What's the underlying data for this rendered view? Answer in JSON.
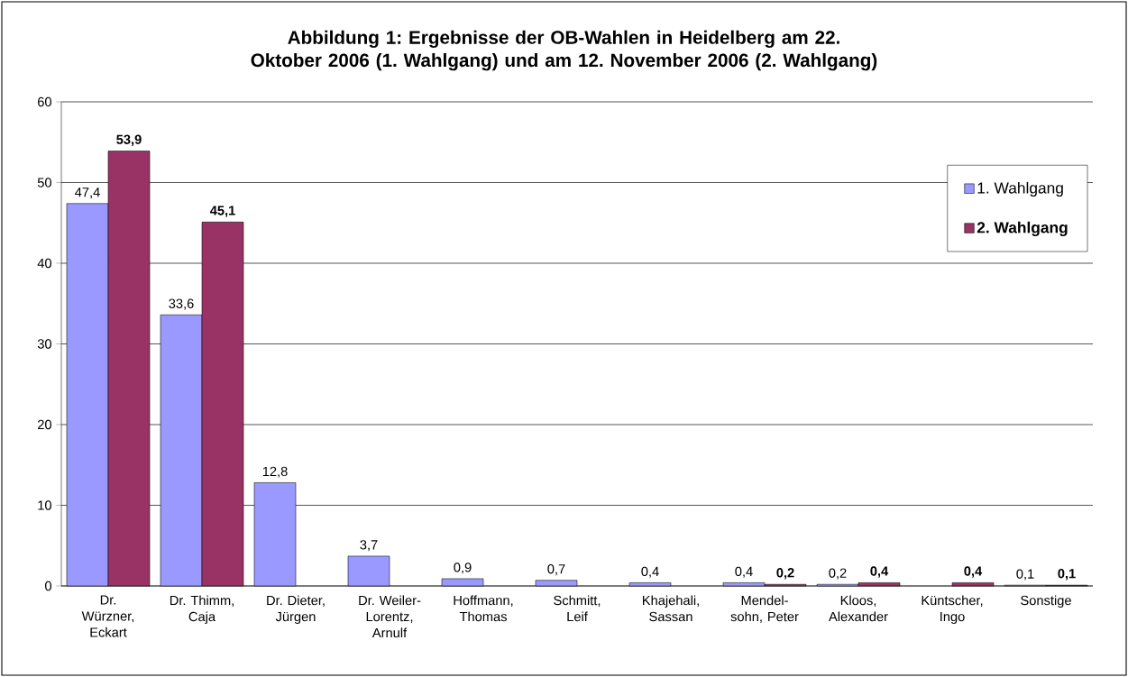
{
  "chart_data": {
    "type": "bar",
    "title": "Abbildung 1: Ergebnisse der OB-Wahlen in Heidelberg am 22. Oktober 2006 (1. Wahlgang) und am 12. November 2006 (2. Wahlgang)",
    "categories": [
      "Dr. Würzner, Eckart",
      "Dr. Thimm, Caja",
      "Dr. Dieter, Jürgen",
      "Dr. Weiler-Lorentz, Arnulf",
      "Hoffmann, Thomas",
      "Schmitt, Leif",
      "Khajehali, Sassan",
      "Mendel-sohn, Peter",
      "Kloos, Alexander",
      "Küntscher, Ingo",
      "Sonstige"
    ],
    "series": [
      {
        "name": "1. Wahlgang",
        "color": "#9999ff",
        "values": [
          47.4,
          33.6,
          12.8,
          3.7,
          0.9,
          0.7,
          0.4,
          0.4,
          0.2,
          null,
          0.1
        ],
        "value_labels": [
          "47,4",
          "33,6",
          "12,8",
          "3,7",
          "0,9",
          "0,7",
          "0,4",
          "0,4",
          "0,2",
          null,
          "0,1"
        ]
      },
      {
        "name": "2. Wahlgang",
        "color": "#993366",
        "values": [
          53.9,
          45.1,
          null,
          null,
          null,
          null,
          null,
          0.2,
          0.4,
          0.4,
          0.1
        ],
        "value_labels": [
          "53,9",
          "45,1",
          null,
          null,
          null,
          null,
          null,
          "0,2",
          "0,4",
          "0,4",
          "0,1"
        ]
      }
    ],
    "ylim": [
      0,
      60
    ],
    "yticks": [
      0,
      10,
      20,
      30,
      40,
      50,
      60
    ],
    "grid": "y",
    "legend": "right"
  }
}
